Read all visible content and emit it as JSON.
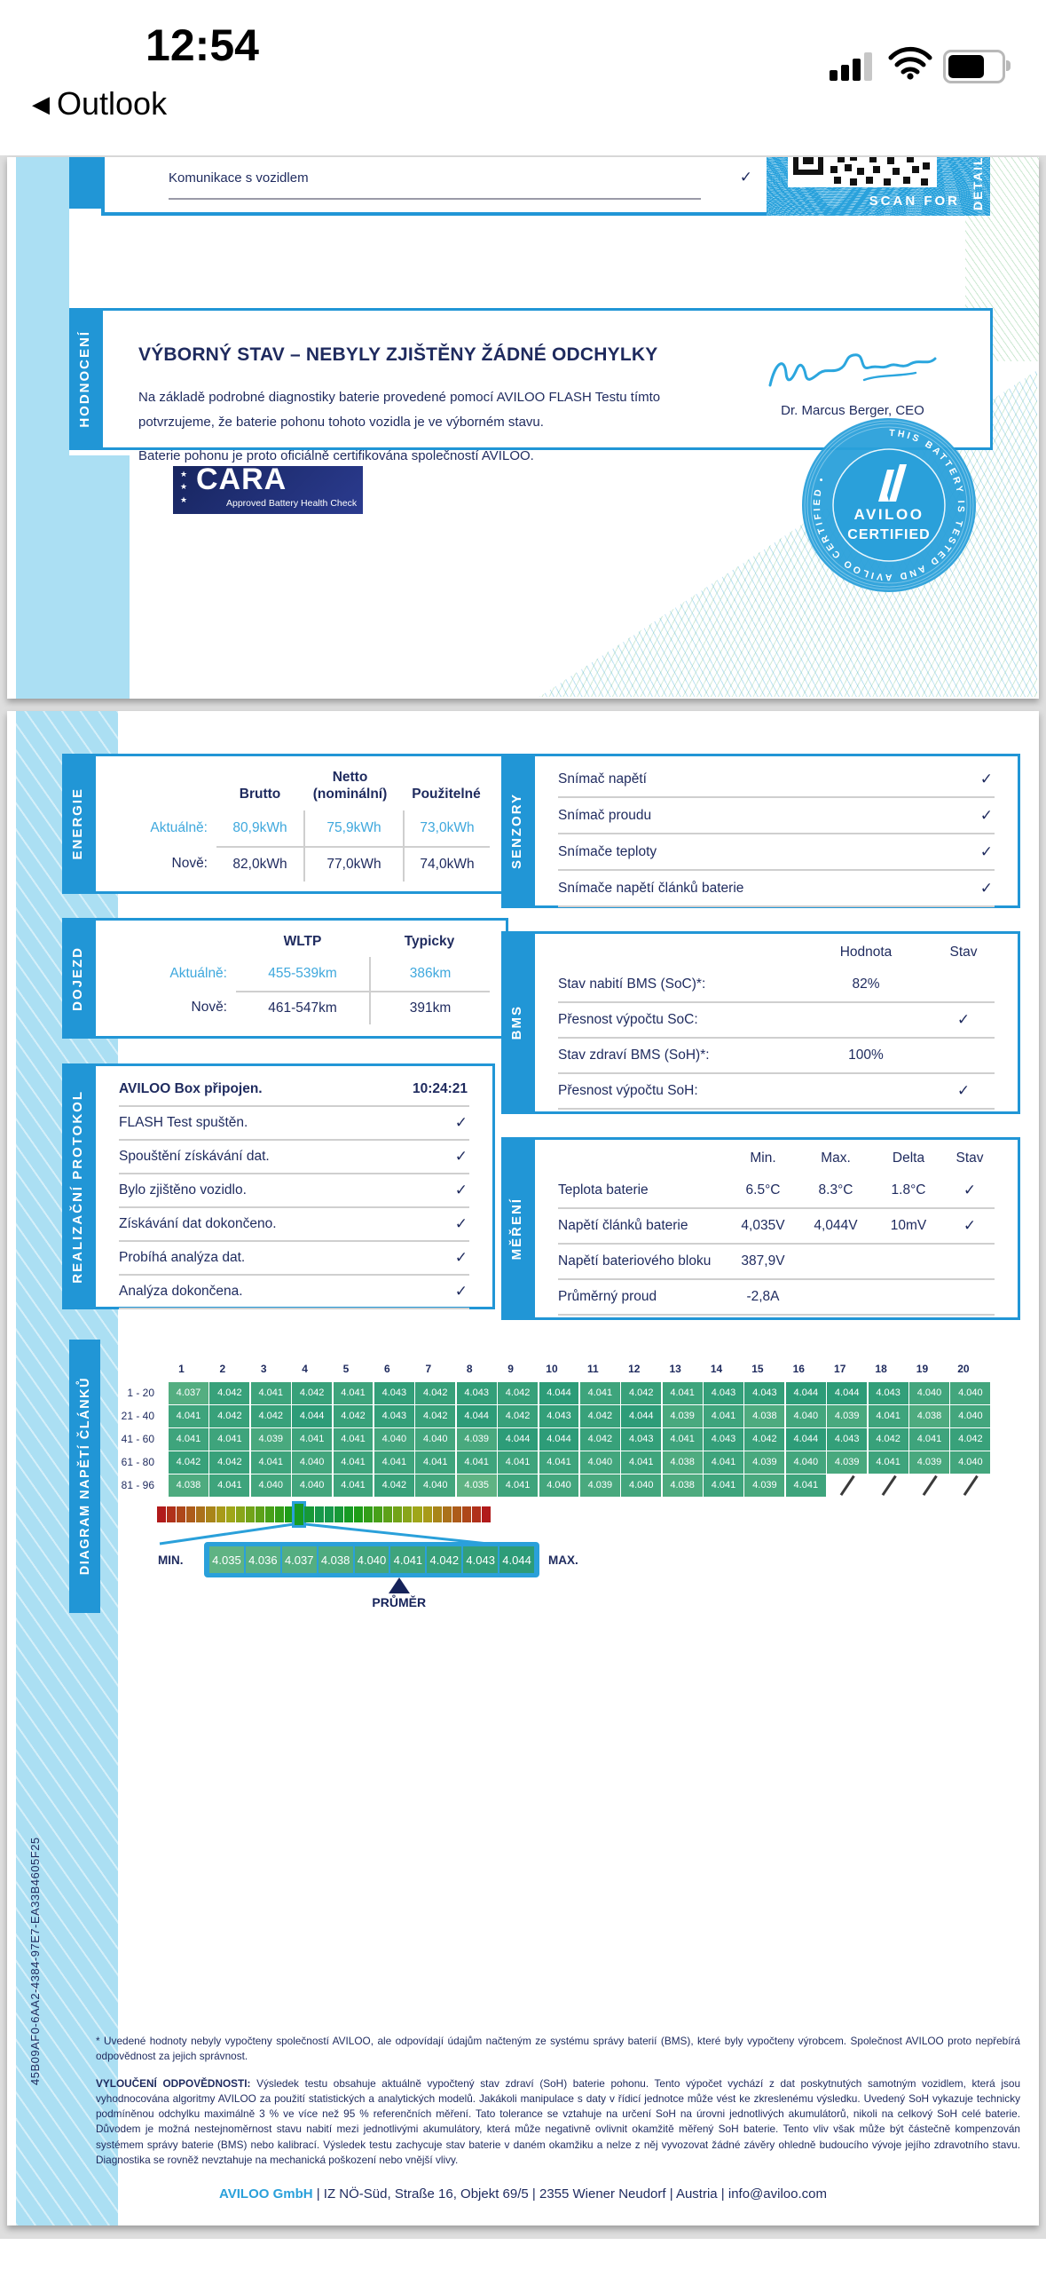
{
  "status_bar": {
    "time": "12:54",
    "back_label": "Outlook",
    "back_icon": "◀"
  },
  "icons": {
    "check": "✓"
  },
  "page1": {
    "top_row": {
      "label": "Komunikace s vozidlem"
    },
    "qr": {
      "scan_text": "SCAN FOR",
      "vertical_text": "DETAILS"
    },
    "hodnoceni": {
      "section_label": "HODNOCENÍ",
      "title": "VÝBORNÝ STAV – NEBYLY ZJIŠTĚNY ŽÁDNÉ ODCHYLKY",
      "para1": "Na základě podrobné diagnostiky baterie provedené pomocí AVILOO FLASH Testu tímto potvrzujeme, že baterie pohonu tohoto vozidla je ve výborném stavu.",
      "para2": "Baterie pohonu je proto oficiálně certifikována společností AVILOO.",
      "signature_name": "Dr. Marcus Berger, CEO"
    },
    "cara": {
      "name": "CARA",
      "subtitle": "Approved Battery Health Check",
      "stars": "★ ★ ★"
    },
    "badge": {
      "brand": "AVILOO",
      "label": "CERTIFIED",
      "ring_text": "THIS BATTERY IS TESTED AND AVILOO CERTIFIED •"
    }
  },
  "page2": {
    "energie": {
      "section_label": "ENERGIE",
      "col_headers": [
        "Brutto",
        "Netto (nominální)",
        "Použitelné"
      ],
      "rows": [
        {
          "label": "Aktuálně:",
          "v1": "80,9kWh",
          "v2": "75,9kWh",
          "v3": "73,0kWh"
        },
        {
          "label": "Nově:",
          "v1": "82,0kWh",
          "v2": "77,0kWh",
          "v3": "74,0kWh"
        }
      ]
    },
    "senzory": {
      "section_label": "SENZORY",
      "rows": [
        "Snímač napětí",
        "Snímač proudu",
        "Snímače teploty",
        "Snímače napětí článků baterie"
      ]
    },
    "dojezd": {
      "section_label": "DOJEZD",
      "col_headers": [
        "WLTP",
        "Typicky"
      ],
      "rows": [
        {
          "label": "Aktuálně:",
          "v1": "455-539km",
          "v2": "386km"
        },
        {
          "label": "Nově:",
          "v1": "461-547km",
          "v2": "391km"
        }
      ]
    },
    "bms": {
      "section_label": "BMS",
      "col_headers": [
        "Hodnota",
        "Stav"
      ],
      "rows": [
        {
          "label": "Stav nabití BMS (SoC)*:",
          "value": "82%",
          "check": ""
        },
        {
          "label": "Přesnost výpočtu SoC:",
          "value": "",
          "check": "✓"
        },
        {
          "label": "Stav zdraví BMS (SoH)*:",
          "value": "100%",
          "check": ""
        },
        {
          "label": "Přesnost výpočtu SoH:",
          "value": "",
          "check": "✓"
        }
      ]
    },
    "protokol": {
      "section_label": "REALIZAČNÍ PROTOKOL",
      "rows": [
        {
          "label": "AVILOO Box připojen.",
          "value": "10:24:21",
          "check": ""
        },
        {
          "label": "FLASH Test spuštěn.",
          "value": "",
          "check": "✓"
        },
        {
          "label": "Spouštění získávání dat.",
          "value": "",
          "check": "✓"
        },
        {
          "label": "Bylo zjištěno vozidlo.",
          "value": "",
          "check": "✓"
        },
        {
          "label": "Získávání dat dokončeno.",
          "value": "",
          "check": "✓"
        },
        {
          "label": "Probíhá analýza dat.",
          "value": "",
          "check": "✓"
        },
        {
          "label": "Analýza dokončena.",
          "value": "",
          "check": "✓"
        }
      ]
    },
    "mereni": {
      "section_label": "MĚŘENÍ",
      "col_headers": [
        "Min.",
        "Max.",
        "Delta",
        "Stav"
      ],
      "rows": [
        {
          "label": "Teplota baterie",
          "min": "6.5°C",
          "max": "8.3°C",
          "delta": "1.8°C",
          "check": "✓"
        },
        {
          "label": "Napětí článků baterie",
          "min": "4,035V",
          "max": "4,044V",
          "delta": "10mV",
          "check": "✓"
        },
        {
          "label": "Napětí bateriového bloku",
          "min": "387,9V",
          "max": "",
          "delta": "",
          "check": ""
        },
        {
          "label": "Průměrný proud",
          "min": "-2,8A",
          "max": "",
          "delta": "",
          "check": ""
        }
      ]
    },
    "footnote": "* Uvedené hodnoty nebyly vypočteny společností AVILOO, ale odpovídají údajům načteným ze systému správy baterií (BMS), které byly vypočteny výrobcem. Společnost AVILOO proto nepřebírá odpovědnost za jejich správnost.",
    "disclaimer_bold": "VYLOUČENÍ ODPOVĚDNOSTI:",
    "disclaimer": " Výsledek testu obsahuje aktuálně vypočtený stav zdraví (SoH) baterie pohonu. Tento výpočet vychází z dat poskytnutých samotným vozidlem, která jsou vyhodnocována algoritmy AVILOO za použití statistických a analytických modelů. Jakákoli manipulace s daty v řídicí jednotce může vést ke zkreslenému výsledku. Uvedený SoH vykazuje technicky podmíněnou odchylku maximálně 3 % ve více než 95 % referenčních měření. Tato tolerance se vztahuje na určení SoH na úrovni jednotlivých akumulátorů, nikoli na celkový SoH celé baterie. Důvodem je možná nestejnoměrnost stavu nabití mezi jednotlivými akumulátory, která může negativně ovlivnit okamžitě měřený SoH baterie. Tento vliv však může být částečně kompenzován systémem správy baterie (BMS) nebo kalibrací. Výsledek testu zachycuje stav baterie v daném okamžiku a nelze z něj vyvozovat žádné závěry ohledně budoucího vývoje jejího zdravotního stavu. Diagnostika se rovněž nevztahuje na mechanická poškození nebo vnější vlivy.",
    "footer": {
      "company": "AVILOO GmbH",
      "rest": " | IZ NÖ-Süd, Straße 16, Objekt 69/5 | 2355 Wiener Neudorf | Austria | info@aviloo.com"
    },
    "uuid": "45B09AF0-6AA2-4384-97E7-EA33B4605F25"
  },
  "chart_data": {
    "type": "heatmap",
    "title": "DIAGRAM NAPĚTÍ ČLÁNKŮ",
    "unit": "V",
    "col_headers": [
      "1",
      "2",
      "3",
      "4",
      "5",
      "6",
      "7",
      "8",
      "9",
      "10",
      "11",
      "12",
      "13",
      "14",
      "15",
      "16",
      "17",
      "18",
      "19",
      "20"
    ],
    "row_labels": [
      "1 - 20",
      "21 - 40",
      "41 - 60",
      "61 - 80",
      "81 - 96"
    ],
    "values": [
      [
        "4.037",
        "4.042",
        "4.041",
        "4.042",
        "4.041",
        "4.043",
        "4.042",
        "4.043",
        "4.042",
        "4.044",
        "4.041",
        "4.042",
        "4.041",
        "4.043",
        "4.043",
        "4.044",
        "4.044",
        "4.043",
        "4.040",
        "4.040"
      ],
      [
        "4.041",
        "4.042",
        "4.042",
        "4.044",
        "4.042",
        "4.043",
        "4.042",
        "4.044",
        "4.042",
        "4.043",
        "4.042",
        "4.044",
        "4.039",
        "4.041",
        "4.038",
        "4.040",
        "4.039",
        "4.041",
        "4.038",
        "4.040"
      ],
      [
        "4.041",
        "4.041",
        "4.039",
        "4.041",
        "4.041",
        "4.040",
        "4.040",
        "4.039",
        "4.044",
        "4.044",
        "4.042",
        "4.043",
        "4.041",
        "4.043",
        "4.042",
        "4.044",
        "4.043",
        "4.042",
        "4.041",
        "4.042"
      ],
      [
        "4.042",
        "4.042",
        "4.041",
        "4.040",
        "4.041",
        "4.041",
        "4.041",
        "4.041",
        "4.041",
        "4.041",
        "4.040",
        "4.041",
        "4.038",
        "4.041",
        "4.039",
        "4.040",
        "4.039",
        "4.041",
        "4.039",
        "4.040"
      ],
      [
        "4.038",
        "4.041",
        "4.040",
        "4.040",
        "4.041",
        "4.042",
        "4.040",
        "4.035",
        "4.041",
        "4.040",
        "4.039",
        "4.040",
        "4.038",
        "4.041",
        "4.039",
        "4.041",
        null,
        null,
        null,
        null
      ]
    ],
    "value_min": 4.035,
    "value_max": 4.044,
    "color_low": "#5fb383",
    "color_high": "#2d9c78",
    "scale": {
      "min_label": "MIN.",
      "max_label": "MAX.",
      "avg_label": "PRŮMĚR",
      "ticks": [
        "4.035",
        "4.036",
        "4.037",
        "4.038",
        "4.040",
        "4.041",
        "4.042",
        "4.043",
        "4.044"
      ],
      "avg_tick_index": 6,
      "gradient_segments": 34,
      "highlight_segment": 14
    }
  }
}
